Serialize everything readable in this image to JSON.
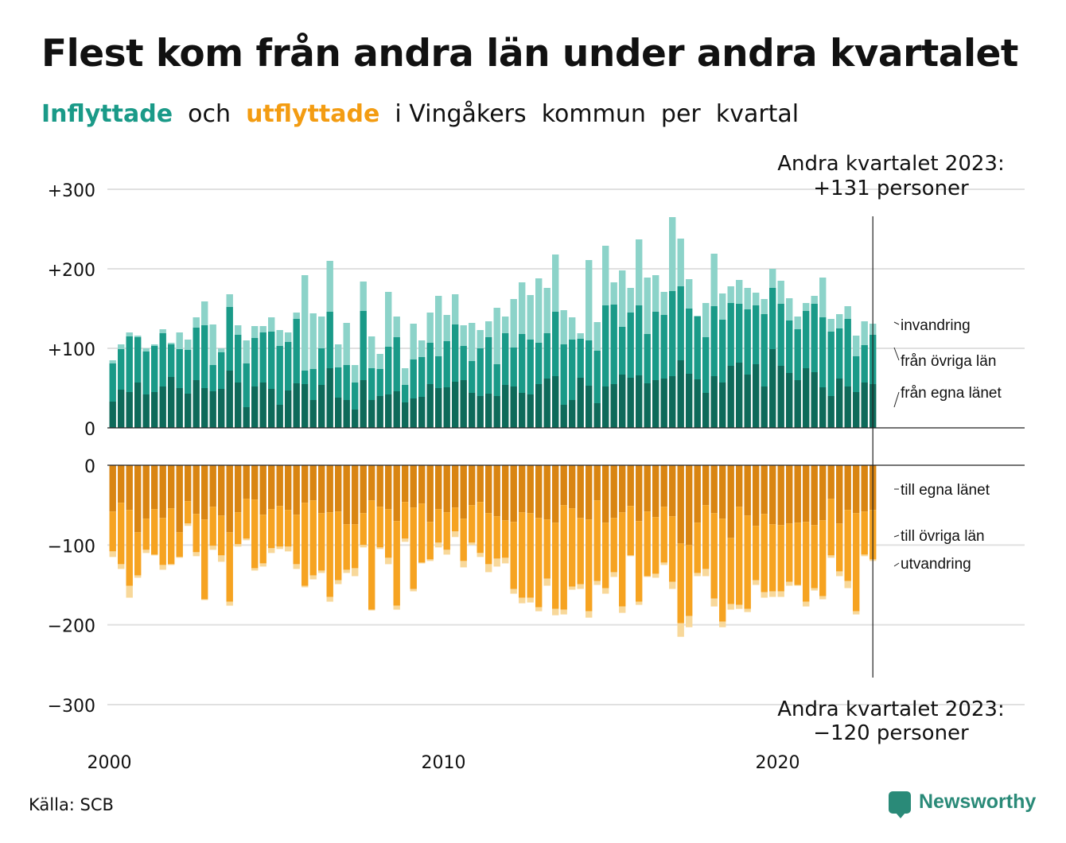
{
  "title": "Flest kom från andra län under andra kvartalet",
  "subtitle": {
    "part1": "Inflyttade",
    "part2": "  och  ",
    "part3": "utflyttade",
    "part4": "  i Vingåkers  kommun  per  kvartal"
  },
  "source": "Källa: SCB",
  "logo_text": "Newsworthy",
  "colors": {
    "in_own": "#0e6a5a",
    "in_other": "#1a9a88",
    "in_imm": "#8cd3c9",
    "out_own": "#d98512",
    "out_other": "#f6a321",
    "out_emig": "#f8d89a"
  },
  "chart_data": {
    "type": "bar",
    "x_start": "2000 Q1",
    "x_tick_labels": [
      "2000",
      "2010",
      "2020"
    ],
    "y_ticks_top": [
      "+300",
      "+200",
      "+100",
      "0"
    ],
    "y_ticks_bottom": [
      "0",
      "−100",
      "−200",
      "−300"
    ],
    "ylim_top": [
      0,
      300
    ],
    "ylim_bottom": [
      -300,
      0
    ],
    "annotation_top": [
      "Andra kvartalet 2023:",
      "+131 personer"
    ],
    "annotation_bottom": [
      "Andra kvartalet 2023:",
      "−120 personer"
    ],
    "labels_in": [
      "invandring",
      "från övriga län",
      "från egna länet"
    ],
    "labels_out": [
      "till egna länet",
      "till övriga län",
      "utvandring"
    ],
    "series": [
      {
        "name": "från egna länet",
        "values": [
          33,
          48,
          45,
          57,
          42,
          45,
          52,
          64,
          50,
          43,
          60,
          50,
          46,
          49,
          72,
          57,
          26,
          52,
          57,
          49,
          29,
          47,
          56,
          55,
          35,
          54,
          75,
          38,
          35,
          23,
          60,
          35,
          40,
          42,
          46,
          32,
          37,
          39,
          55,
          50,
          51,
          58,
          60,
          44,
          40,
          43,
          40,
          54,
          52,
          44,
          42,
          55,
          62,
          65,
          29,
          35,
          63,
          53,
          31,
          52,
          55,
          67,
          63,
          66,
          56,
          60,
          62,
          65,
          85,
          68,
          61,
          44,
          65,
          57,
          78,
          82,
          67,
          80,
          52,
          99,
          78,
          69,
          60,
          75,
          70,
          51,
          40,
          62,
          52,
          45,
          57,
          55
        ]
      },
      {
        "name": "från övriga län",
        "values": [
          48,
          51,
          70,
          57,
          54,
          58,
          67,
          41,
          49,
          55,
          66,
          79,
          33,
          46,
          80,
          60,
          55,
          61,
          63,
          72,
          74,
          61,
          81,
          17,
          39,
          46,
          71,
          38,
          44,
          34,
          87,
          40,
          34,
          60,
          68,
          22,
          49,
          50,
          52,
          40,
          58,
          72,
          43,
          40,
          60,
          71,
          40,
          65,
          49,
          74,
          69,
          52,
          57,
          81,
          76,
          76,
          49,
          57,
          66,
          102,
          100,
          60,
          82,
          88,
          62,
          86,
          80,
          107,
          93,
          82,
          79,
          70,
          88,
          79,
          79,
          74,
          82,
          74,
          91,
          77,
          78,
          66,
          64,
          72,
          86,
          88,
          81,
          63,
          85,
          45,
          47,
          62
        ]
      },
      {
        "name": "invandring",
        "values": [
          4,
          6,
          5,
          2,
          4,
          2,
          5,
          2,
          21,
          13,
          13,
          30,
          51,
          5,
          16,
          12,
          29,
          15,
          8,
          18,
          20,
          12,
          8,
          120,
          70,
          40,
          64,
          29,
          53,
          22,
          37,
          40,
          19,
          69,
          26,
          21,
          45,
          21,
          38,
          76,
          33,
          38,
          26,
          48,
          23,
          20,
          71,
          21,
          61,
          65,
          56,
          81,
          57,
          72,
          43,
          28,
          7,
          101,
          36,
          75,
          28,
          71,
          31,
          83,
          71,
          46,
          29,
          93,
          60,
          37,
          1,
          43,
          66,
          33,
          21,
          30,
          27,
          16,
          19,
          24,
          29,
          28,
          16,
          10,
          10,
          50,
          16,
          18,
          16,
          26,
          30,
          14
        ]
      }
    ],
    "series_out": [
      {
        "name": "till egna länet",
        "values": [
          58,
          47,
          56,
          84,
          67,
          55,
          66,
          54,
          84,
          45,
          61,
          68,
          52,
          63,
          84,
          59,
          42,
          43,
          62,
          55,
          51,
          56,
          62,
          47,
          44,
          60,
          59,
          58,
          74,
          74,
          60,
          44,
          52,
          55,
          70,
          46,
          53,
          48,
          71,
          55,
          59,
          53,
          67,
          50,
          46,
          60,
          64,
          69,
          71,
          59,
          60,
          66,
          68,
          72,
          50,
          54,
          66,
          68,
          44,
          72,
          66,
          59,
          51,
          70,
          58,
          65,
          52,
          64,
          98,
          100,
          72,
          50,
          60,
          67,
          91,
          52,
          63,
          76,
          61,
          74,
          75,
          73,
          72,
          71,
          75,
          69,
          42,
          73,
          56,
          60,
          58,
          56
        ]
      },
      {
        "name": "till övriga län",
        "values": [
          50,
          77,
          95,
          54,
          39,
          57,
          59,
          70,
          31,
          28,
          48,
          100,
          49,
          50,
          87,
          40,
          50,
          86,
          61,
          49,
          51,
          46,
          62,
          104,
          94,
          72,
          106,
          86,
          57,
          55,
          40,
          137,
          51,
          61,
          106,
          46,
          102,
          74,
          47,
          42,
          47,
          30,
          53,
          47,
          64,
          64,
          53,
          47,
          84,
          107,
          106,
          112,
          74,
          108,
          131,
          98,
          83,
          115,
          101,
          82,
          68,
          118,
          62,
          101,
          81,
          71,
          70,
          82,
          100,
          89,
          63,
          80,
          107,
          129,
          83,
          123,
          117,
          68,
          98,
          84,
          83,
          73,
          78,
          100,
          79,
          95,
          71,
          60,
          89,
          123,
          54,
          62
        ]
      },
      {
        "name": "utvandring",
        "values": [
          7,
          6,
          15,
          3,
          4,
          1,
          6,
          1,
          1,
          3,
          5,
          1,
          5,
          8,
          5,
          3,
          2,
          3,
          4,
          6,
          3,
          6,
          6,
          2,
          5,
          3,
          6,
          5,
          4,
          10,
          3,
          1,
          2,
          8,
          5,
          4,
          3,
          1,
          2,
          6,
          6,
          7,
          8,
          3,
          5,
          10,
          10,
          7,
          6,
          7,
          6,
          5,
          9,
          8,
          6,
          4,
          6,
          8,
          5,
          7,
          6,
          8,
          1,
          4,
          1,
          5,
          3,
          9,
          17,
          14,
          4,
          9,
          10,
          7,
          7,
          5,
          4,
          6,
          7,
          7,
          7,
          5,
          1,
          6,
          3,
          4,
          3,
          6,
          9,
          4,
          2,
          2
        ]
      }
    ]
  }
}
